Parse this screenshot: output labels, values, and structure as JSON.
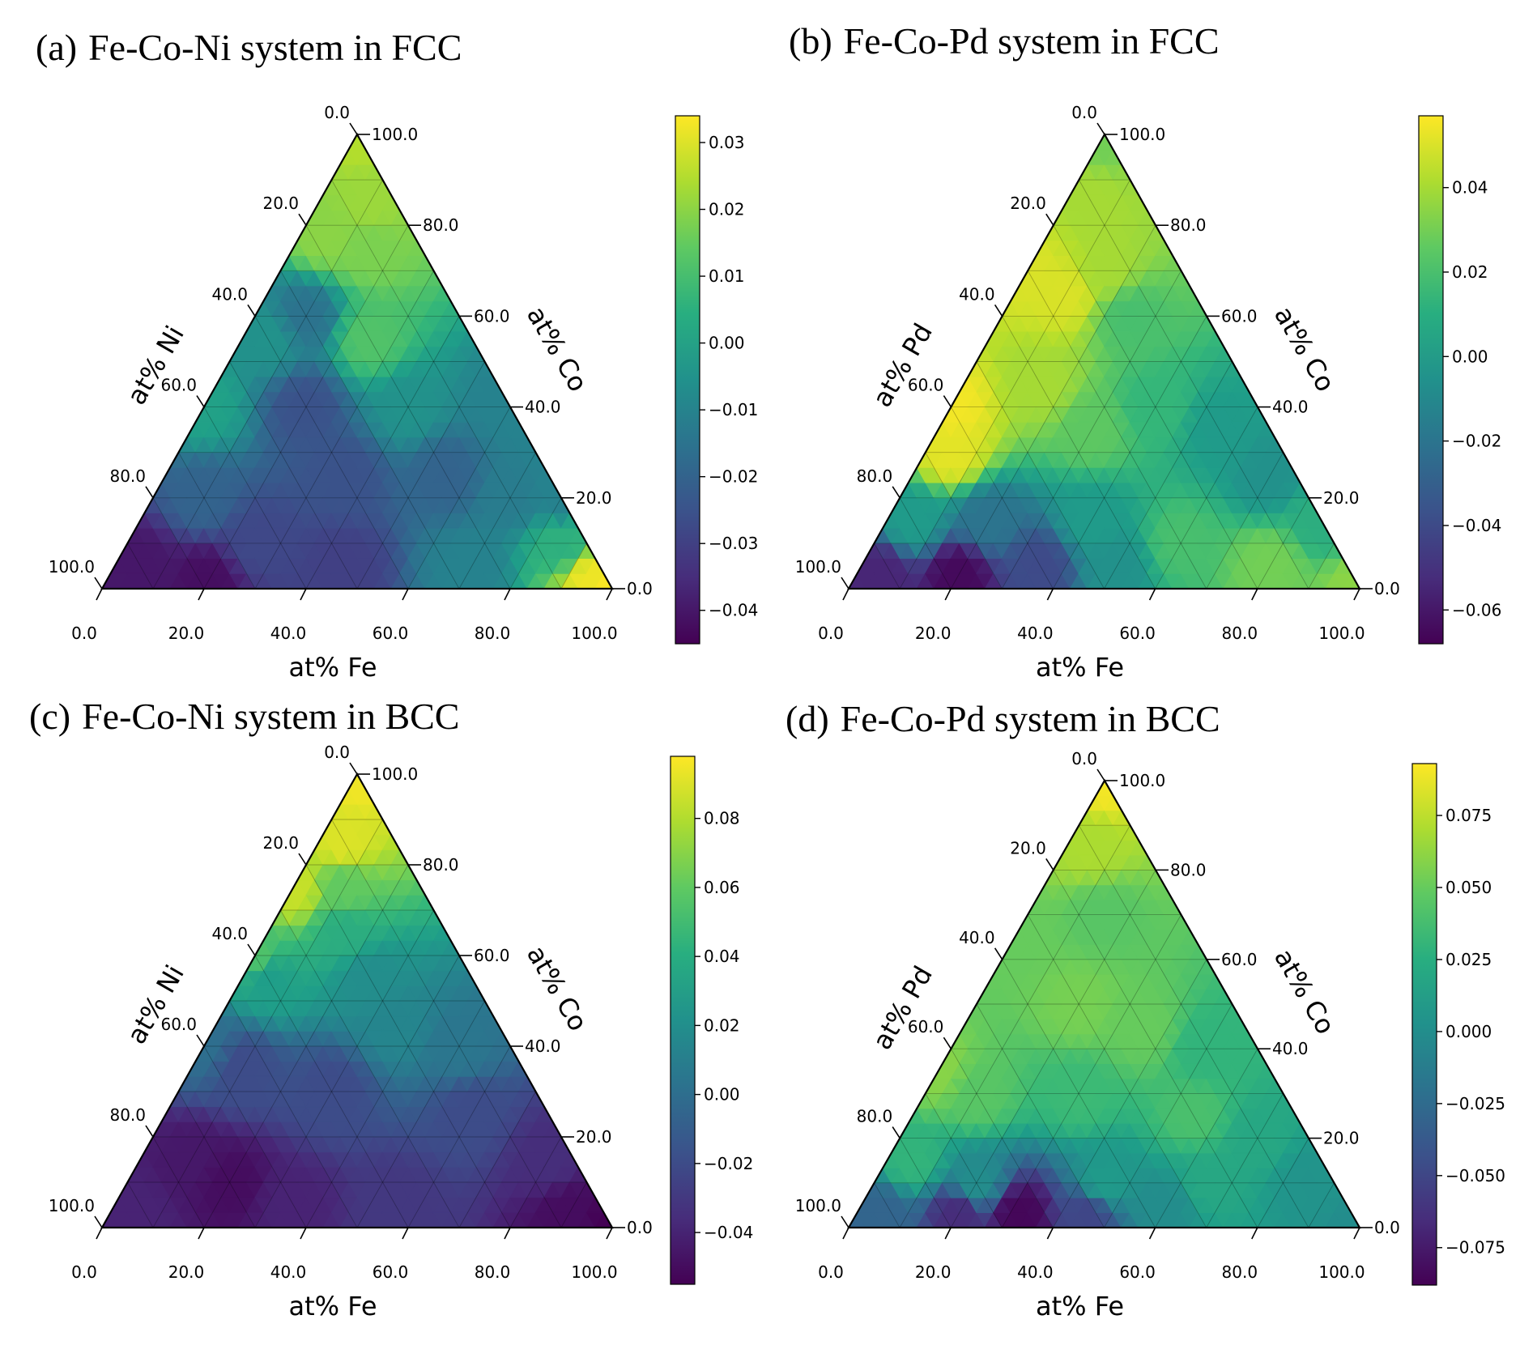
{
  "chart_data": [
    {
      "type": "heatmap",
      "subtype": "ternary",
      "panel_label": "(a)",
      "title": "Fe-Co-Ni system in FCC",
      "axes": {
        "bottom": "at% Fe",
        "left": "at% Ni",
        "right": "at% Co"
      },
      "ticks": [
        "0.0",
        "20.0",
        "40.0",
        "60.0",
        "80.0",
        "100.0"
      ],
      "colormap": "viridis",
      "colorbar": {
        "range": [
          -0.045,
          0.034
        ],
        "ticks": [
          0.03,
          0.02,
          0.01,
          0.0,
          -0.01,
          -0.02,
          -0.03,
          -0.04
        ],
        "tick_labels": [
          "0.03",
          "0.02",
          "0.01",
          "0.00",
          "−0.01",
          "−0.02",
          "−0.03",
          "−0.04"
        ]
      },
      "points": [
        {
          "fe": 0,
          "co": 100,
          "val": 0.025
        },
        {
          "fe": 10,
          "co": 85,
          "val": 0.022
        },
        {
          "fe": 5,
          "co": 78,
          "val": 0.02
        },
        {
          "fe": 15,
          "co": 75,
          "val": 0.018
        },
        {
          "fe": 25,
          "co": 55,
          "val": 0.012
        },
        {
          "fe": 40,
          "co": 40,
          "val": -0.005
        },
        {
          "fe": 10,
          "co": 60,
          "val": -0.015
        },
        {
          "fe": 5,
          "co": 55,
          "val": -0.005
        },
        {
          "fe": 0,
          "co": 40,
          "val": 0.0
        },
        {
          "fe": 20,
          "co": 40,
          "val": -0.025
        },
        {
          "fe": 35,
          "co": 25,
          "val": -0.025
        },
        {
          "fe": 55,
          "co": 25,
          "val": -0.02
        },
        {
          "fe": 70,
          "co": 20,
          "val": -0.012
        },
        {
          "fe": 10,
          "co": 20,
          "val": -0.02
        },
        {
          "fe": 25,
          "co": 10,
          "val": -0.028
        },
        {
          "fe": 5,
          "co": 5,
          "val": -0.04
        },
        {
          "fe": 20,
          "co": 2,
          "val": -0.042
        },
        {
          "fe": 45,
          "co": 5,
          "val": -0.03
        },
        {
          "fe": 70,
          "co": 5,
          "val": -0.01
        },
        {
          "fe": 85,
          "co": 10,
          "val": 0.005
        },
        {
          "fe": 95,
          "co": 2,
          "val": 0.032
        },
        {
          "fe": 100,
          "co": 0,
          "val": 0.034
        },
        {
          "fe": 60,
          "co": 40,
          "val": -0.01
        },
        {
          "fe": 80,
          "co": 20,
          "val": -0.01
        }
      ]
    },
    {
      "type": "heatmap",
      "subtype": "ternary",
      "panel_label": "(b)",
      "title": "Fe-Co-Pd system in FCC",
      "axes": {
        "bottom": "at% Fe",
        "left": "at% Pd",
        "right": "at% Co"
      },
      "ticks": [
        "0.0",
        "20.0",
        "40.0",
        "60.0",
        "80.0",
        "100.0"
      ],
      "colormap": "viridis",
      "colorbar": {
        "range": [
          -0.068,
          0.057
        ],
        "ticks": [
          0.04,
          0.02,
          0.0,
          -0.02,
          -0.04,
          -0.06
        ],
        "tick_labels": [
          "0.04",
          "0.02",
          "0.00",
          "−0.02",
          "−0.04",
          "−0.06"
        ]
      },
      "points": [
        {
          "fe": 0,
          "co": 100,
          "val": 0.03
        },
        {
          "fe": 5,
          "co": 85,
          "val": 0.04
        },
        {
          "fe": 0,
          "co": 70,
          "val": 0.05
        },
        {
          "fe": 10,
          "co": 65,
          "val": 0.05
        },
        {
          "fe": 15,
          "co": 70,
          "val": 0.04
        },
        {
          "fe": 25,
          "co": 60,
          "val": 0.02
        },
        {
          "fe": 0,
          "co": 40,
          "val": 0.055
        },
        {
          "fe": 5,
          "co": 30,
          "val": 0.052
        },
        {
          "fe": 15,
          "co": 45,
          "val": 0.04
        },
        {
          "fe": 30,
          "co": 35,
          "val": 0.025
        },
        {
          "fe": 40,
          "co": 40,
          "val": 0.015
        },
        {
          "fe": 55,
          "co": 35,
          "val": 0.0
        },
        {
          "fe": 70,
          "co": 25,
          "val": -0.005
        },
        {
          "fe": 5,
          "co": 15,
          "val": 0.0
        },
        {
          "fe": 20,
          "co": 15,
          "val": -0.02
        },
        {
          "fe": 40,
          "co": 15,
          "val": 0.0
        },
        {
          "fe": 60,
          "co": 10,
          "val": 0.02
        },
        {
          "fe": 80,
          "co": 5,
          "val": 0.03
        },
        {
          "fe": 100,
          "co": 0,
          "val": 0.035
        },
        {
          "fe": 5,
          "co": 3,
          "val": -0.055
        },
        {
          "fe": 20,
          "co": 3,
          "val": -0.065
        },
        {
          "fe": 35,
          "co": 5,
          "val": -0.04
        },
        {
          "fe": 50,
          "co": 5,
          "val": -0.005
        },
        {
          "fe": 85,
          "co": 15,
          "val": 0.01
        }
      ]
    },
    {
      "type": "heatmap",
      "subtype": "ternary",
      "panel_label": "(c)",
      "title": "Fe-Co-Ni system in BCC",
      "axes": {
        "bottom": "at% Fe",
        "left": "at% Ni",
        "right": "at% Co"
      },
      "ticks": [
        "0.0",
        "20.0",
        "40.0",
        "60.0",
        "80.0",
        "100.0"
      ],
      "colormap": "viridis",
      "colorbar": {
        "range": [
          -0.055,
          0.098
        ],
        "ticks": [
          0.08,
          0.06,
          0.04,
          0.02,
          0.0,
          -0.02,
          -0.04
        ],
        "tick_labels": [
          "0.08",
          "0.06",
          "0.04",
          "0.02",
          "0.00",
          "−0.02",
          "−0.04"
        ]
      },
      "points": [
        {
          "fe": 0,
          "co": 100,
          "val": 0.095
        },
        {
          "fe": 5,
          "co": 85,
          "val": 0.09
        },
        {
          "fe": 0,
          "co": 75,
          "val": 0.085
        },
        {
          "fe": 10,
          "co": 75,
          "val": 0.06
        },
        {
          "fe": 15,
          "co": 65,
          "val": 0.04
        },
        {
          "fe": 0,
          "co": 60,
          "val": 0.055
        },
        {
          "fe": 5,
          "co": 55,
          "val": 0.03
        },
        {
          "fe": 25,
          "co": 55,
          "val": 0.02
        },
        {
          "fe": 35,
          "co": 45,
          "val": 0.015
        },
        {
          "fe": 50,
          "co": 40,
          "val": 0.005
        },
        {
          "fe": 0,
          "co": 40,
          "val": 0.0
        },
        {
          "fe": 10,
          "co": 35,
          "val": -0.02
        },
        {
          "fe": 30,
          "co": 30,
          "val": -0.02
        },
        {
          "fe": 60,
          "co": 25,
          "val": -0.02
        },
        {
          "fe": 80,
          "co": 15,
          "val": -0.035
        },
        {
          "fe": 10,
          "co": 15,
          "val": -0.045
        },
        {
          "fe": 20,
          "co": 10,
          "val": -0.05
        },
        {
          "fe": 35,
          "co": 5,
          "val": -0.04
        },
        {
          "fe": 55,
          "co": 5,
          "val": -0.03
        },
        {
          "fe": 5,
          "co": 3,
          "val": -0.04
        },
        {
          "fe": 90,
          "co": 3,
          "val": -0.05
        },
        {
          "fe": 100,
          "co": 0,
          "val": -0.055
        }
      ]
    },
    {
      "type": "heatmap",
      "subtype": "ternary",
      "panel_label": "(d)",
      "title": "Fe-Co-Pd system in BCC",
      "axes": {
        "bottom": "at% Fe",
        "left": "at% Pd",
        "right": "at% Co"
      },
      "ticks": [
        "0.0",
        "20.0",
        "40.0",
        "60.0",
        "80.0",
        "100.0"
      ],
      "colormap": "viridis",
      "colorbar": {
        "range": [
          -0.088,
          0.093
        ],
        "ticks": [
          0.075,
          0.05,
          0.025,
          0.0,
          -0.025,
          -0.05,
          -0.075
        ],
        "tick_labels": [
          "0.075",
          "0.050",
          "0.025",
          "0.000",
          "−0.025",
          "−0.050",
          "−0.075"
        ]
      },
      "points": [
        {
          "fe": 0,
          "co": 100,
          "val": 0.09
        },
        {
          "fe": 5,
          "co": 85,
          "val": 0.07
        },
        {
          "fe": 15,
          "co": 70,
          "val": 0.045
        },
        {
          "fe": 0,
          "co": 65,
          "val": 0.05
        },
        {
          "fe": 20,
          "co": 50,
          "val": 0.055
        },
        {
          "fe": 35,
          "co": 45,
          "val": 0.05
        },
        {
          "fe": 50,
          "co": 40,
          "val": 0.03
        },
        {
          "fe": 0,
          "co": 35,
          "val": 0.06
        },
        {
          "fe": 10,
          "co": 30,
          "val": 0.045
        },
        {
          "fe": 30,
          "co": 30,
          "val": 0.035
        },
        {
          "fe": 55,
          "co": 25,
          "val": 0.04
        },
        {
          "fe": 70,
          "co": 20,
          "val": 0.02
        },
        {
          "fe": 5,
          "co": 15,
          "val": 0.03
        },
        {
          "fe": 20,
          "co": 10,
          "val": 0.0
        },
        {
          "fe": 45,
          "co": 10,
          "val": 0.01
        },
        {
          "fe": 65,
          "co": 10,
          "val": 0.02
        },
        {
          "fe": 85,
          "co": 10,
          "val": 0.005
        },
        {
          "fe": 5,
          "co": 3,
          "val": -0.03
        },
        {
          "fe": 20,
          "co": 3,
          "val": -0.065
        },
        {
          "fe": 32,
          "co": 3,
          "val": -0.085
        },
        {
          "fe": 45,
          "co": 3,
          "val": -0.05
        },
        {
          "fe": 60,
          "co": 5,
          "val": 0.0
        },
        {
          "fe": 100,
          "co": 0,
          "val": 0.0
        }
      ]
    }
  ]
}
